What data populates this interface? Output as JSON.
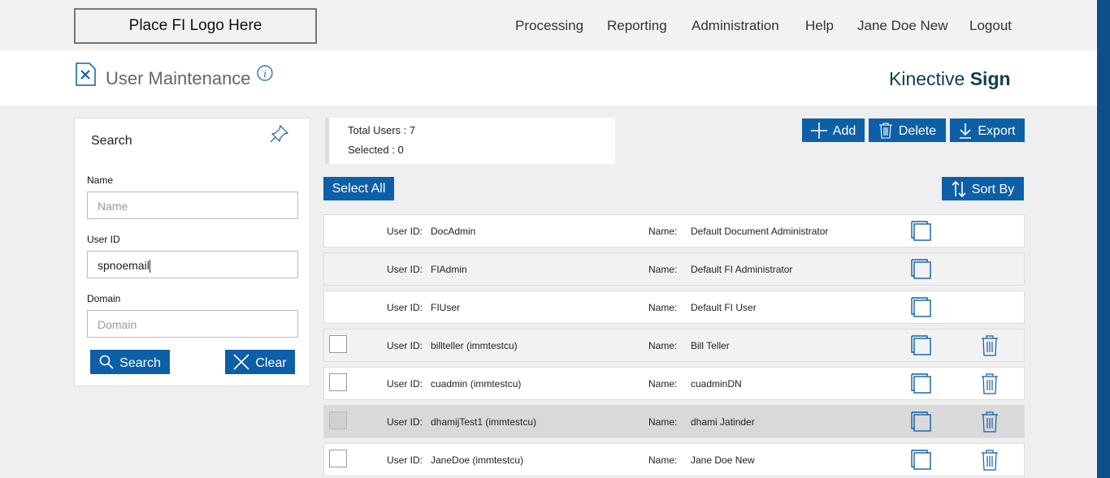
{
  "header": {
    "logo": "Place FI Logo Here",
    "nav": [
      "Processing",
      "Reporting",
      "Administration",
      "Help",
      "Jane Doe New",
      "Logout"
    ]
  },
  "page": {
    "title": "User Maintenance",
    "brand_light": "Kinective",
    "brand_bold": "Sign"
  },
  "search": {
    "title": "Search",
    "fields": [
      {
        "label": "Name",
        "placeholder": "Name"
      },
      {
        "label": "User ID",
        "value": "spnoemail"
      },
      {
        "label": "Domain",
        "placeholder": "Domain"
      }
    ],
    "buttons": [
      "Search",
      "Clear"
    ]
  },
  "summary": {
    "total_label": "Total Users :",
    "total": 7,
    "selected_label": "Selected :",
    "selected": 0
  },
  "actions": [
    "Add",
    "Delete",
    "Export"
  ],
  "select_all": "Select All",
  "sort_by": "Sort By",
  "columns": {
    "user_id": "User ID:",
    "name": "Name:"
  },
  "users": [
    {
      "user_id": "DocAdmin",
      "name": "Default Document Administrator",
      "deletable": false,
      "highlighted": false
    },
    {
      "user_id": "FIAdmin",
      "name": "Default FI Administrator",
      "deletable": false,
      "highlighted": false
    },
    {
      "user_id": "FIUser",
      "name": "Default FI User",
      "deletable": false,
      "highlighted": false
    },
    {
      "user_id": "billteller (immtestcu)",
      "name": "Bill Teller",
      "deletable": true,
      "highlighted": false
    },
    {
      "user_id": "cuadmin (immtestcu)",
      "name": "cuadminDN",
      "deletable": true,
      "highlighted": false
    },
    {
      "user_id": "dhamijTest1 (immtestcu)",
      "name": "dhami Jatinder",
      "deletable": true,
      "highlighted": true
    },
    {
      "user_id": "JaneDoe (immtestcu)",
      "name": "Jane Doe New",
      "deletable": true,
      "highlighted": false
    }
  ]
}
